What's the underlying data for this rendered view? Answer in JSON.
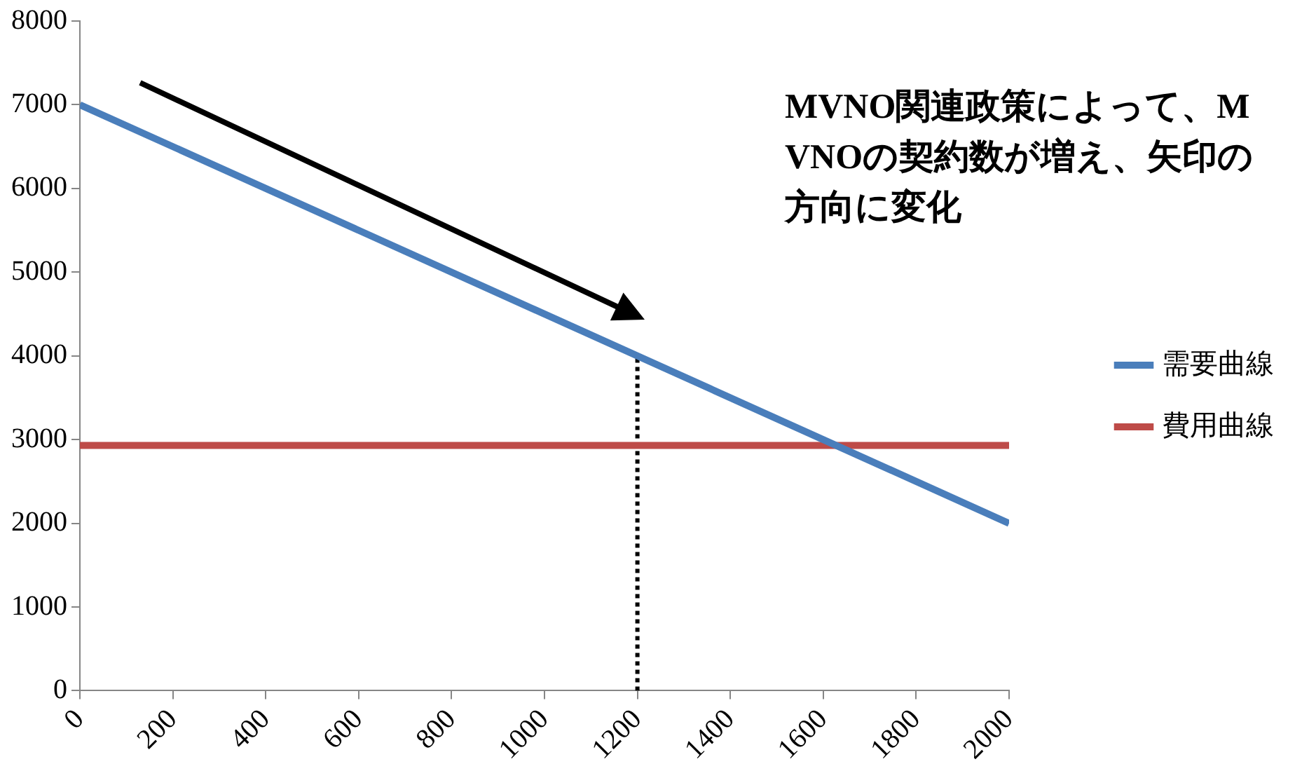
{
  "chart_data": {
    "type": "line",
    "xlim": [
      0,
      2000
    ],
    "xticks": [
      0,
      200,
      400,
      600,
      800,
      1000,
      1200,
      1400,
      1600,
      1800,
      2000
    ],
    "ylim": [
      0,
      8000
    ],
    "yticks": [
      0,
      1000,
      2000,
      3000,
      4000,
      5000,
      6000,
      7000,
      8000
    ],
    "grid": false,
    "legend": "right",
    "marker": "none",
    "annotations": [
      "MVNO関連政策によって、MVNOの契約数が増え、矢印の方向に変化"
    ],
    "series": [
      {
        "name": "需要曲線",
        "color": "#4a7ebb",
        "x": [
          0,
          2000
        ],
        "values": [
          7000,
          2000
        ]
      },
      {
        "name": "費用曲線",
        "color": "#be4b48",
        "x": [
          0,
          2000
        ],
        "values": [
          2930,
          2930
        ]
      },
      {
        "color": "#000000",
        "x": [
          1200,
          1200
        ],
        "values": [
          0,
          4000
        ],
        "line_style": "dotted"
      }
    ]
  }
}
